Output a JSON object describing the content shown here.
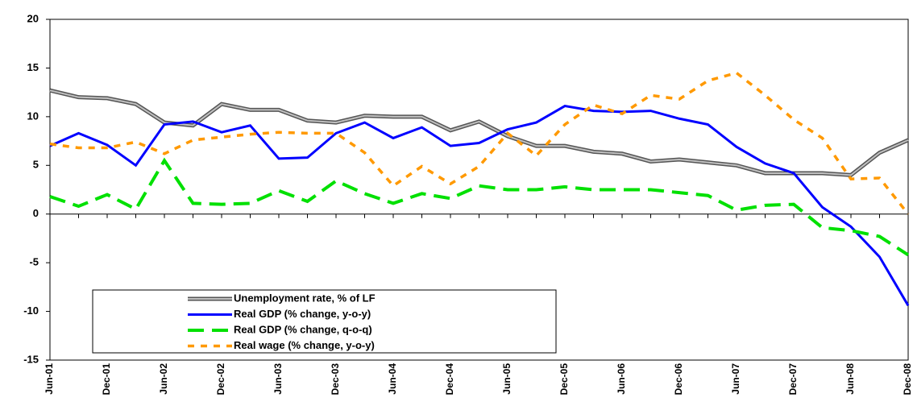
{
  "chart_data": {
    "type": "line",
    "categories": [
      "Jun-01",
      null,
      "Dec-01",
      null,
      "Jun-02",
      null,
      "Dec-02",
      null,
      "Jun-03",
      null,
      "Dec-03",
      null,
      "Jun-04",
      null,
      "Dec-04",
      null,
      "Jun-05",
      null,
      "Dec-05",
      null,
      "Jun-06",
      null,
      "Dec-06",
      null,
      "Jun-07",
      null,
      "Dec-07",
      null,
      "Jun-08",
      null,
      "Dec-08"
    ],
    "series": [
      {
        "name": "Unemployment rate, % of LF",
        "color": "#808080",
        "values": [
          12.7,
          12.0,
          11.9,
          11.3,
          9.4,
          9.1,
          11.3,
          10.7,
          10.7,
          9.6,
          9.4,
          10.1,
          10.0,
          10.0,
          8.6,
          9.5,
          8.0,
          7.0,
          7.0,
          6.4,
          6.2,
          5.4,
          5.6,
          5.3,
          5.0,
          4.2,
          4.2,
          4.2,
          4.0,
          6.3,
          7.6
        ]
      },
      {
        "name": "Real GDP (% change, y-o-y)",
        "color": "#0000ff",
        "values": [
          7.0,
          8.3,
          7.1,
          5.0,
          9.2,
          9.5,
          8.4,
          9.1,
          5.7,
          5.8,
          8.3,
          9.4,
          7.8,
          8.9,
          7.0,
          7.3,
          8.7,
          9.4,
          11.1,
          10.6,
          10.5,
          10.6,
          9.8,
          9.2,
          6.9,
          5.2,
          4.2,
          0.7,
          -1.3,
          -4.4,
          -9.4
        ]
      },
      {
        "name": "Real GDP (% change, q-o-q)",
        "color": "#00e000",
        "values": [
          1.8,
          0.8,
          2.0,
          0.5,
          5.5,
          1.1,
          1.0,
          1.1,
          2.4,
          1.3,
          3.4,
          2.1,
          1.1,
          2.1,
          1.6,
          2.9,
          2.5,
          2.5,
          2.8,
          2.5,
          2.5,
          2.5,
          2.2,
          1.9,
          0.4,
          0.9,
          1.0,
          -1.4,
          -1.7,
          -2.3,
          -4.2
        ]
      },
      {
        "name": "Real wage (% change, y-o-y)",
        "color": "#ff9900",
        "values": [
          7.2,
          6.8,
          6.8,
          7.4,
          6.2,
          7.6,
          7.9,
          8.2,
          8.4,
          8.3,
          8.3,
          6.3,
          2.9,
          4.9,
          3.1,
          4.9,
          8.3,
          6.0,
          9.2,
          11.2,
          10.3,
          12.2,
          11.8,
          13.7,
          14.5,
          12.2,
          9.7,
          7.8,
          3.6,
          3.7,
          0.0
        ]
      }
    ],
    "ylim": [
      -15,
      20
    ],
    "yticks": [
      -15,
      -10,
      -5,
      0,
      5,
      10,
      15,
      20
    ]
  }
}
